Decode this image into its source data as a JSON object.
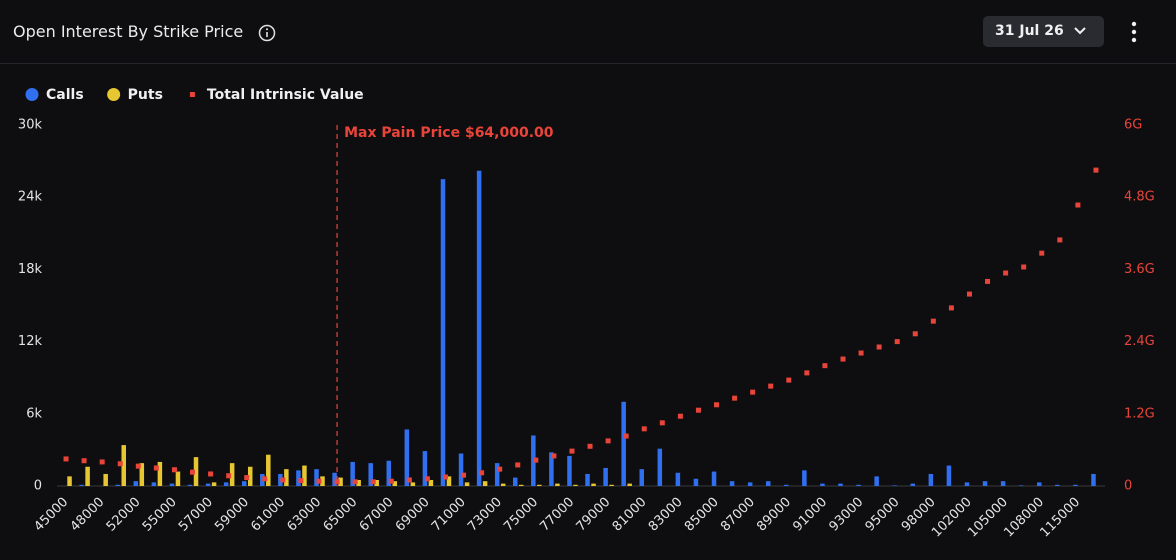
{
  "header": {
    "title": "Open Interest By Strike Price",
    "date": "31 Jul 26"
  },
  "chart_data": {
    "type": "bar",
    "categories": [
      45000,
      null,
      48000,
      null,
      52000,
      null,
      55000,
      null,
      57000,
      null,
      59000,
      null,
      61000,
      null,
      63000,
      null,
      65000,
      null,
      67000,
      null,
      69000,
      null,
      71000,
      null,
      73000,
      null,
      75000,
      null,
      77000,
      null,
      79000,
      null,
      81000,
      null,
      83000,
      null,
      85000,
      null,
      87000,
      null,
      89000,
      null,
      91000,
      null,
      93000,
      null,
      95000,
      null,
      98000,
      null,
      102000,
      null,
      105000,
      null,
      108000,
      null,
      115000,
      null
    ],
    "series": [
      {
        "name": "Calls",
        "color": "#3070f0",
        "values": [
          0,
          100,
          0,
          100,
          400,
          300,
          200,
          100,
          200,
          300,
          400,
          1000,
          1000,
          1300,
          1400,
          1100,
          2000,
          1900,
          2100,
          4700,
          2900,
          25500,
          2700,
          26200,
          1900,
          700,
          4200,
          2800,
          2500,
          1000,
          1500,
          7000,
          1400,
          3100,
          1100,
          600,
          1200,
          400,
          300,
          400,
          100,
          1300,
          200,
          200,
          100,
          800,
          50,
          200,
          1000,
          1700,
          300,
          400,
          400,
          50,
          300,
          100,
          100,
          1000
        ]
      },
      {
        "name": "Puts",
        "color": "#e6c631",
        "values": [
          800,
          1600,
          1000,
          3400,
          1900,
          2000,
          1200,
          2400,
          300,
          1900,
          1600,
          2600,
          1400,
          1700,
          800,
          700,
          500,
          500,
          400,
          300,
          500,
          800,
          300,
          400,
          200,
          100,
          100,
          200,
          100,
          200,
          100,
          200,
          0,
          0,
          0,
          0,
          0,
          0,
          0,
          0,
          0,
          0,
          0,
          0,
          0,
          0,
          0,
          0,
          0,
          0,
          0,
          0,
          0,
          0,
          0,
          0,
          0,
          0
        ]
      },
      {
        "name": "Total Intrinsic Value",
        "color": "#e8443a",
        "axis": "y2",
        "values": [
          0.45,
          0.42,
          0.4,
          0.37,
          0.33,
          0.3,
          0.27,
          0.23,
          0.2,
          0.17,
          0.14,
          0.12,
          0.1,
          0.09,
          0.08,
          0.07,
          0.07,
          0.07,
          0.08,
          0.1,
          0.12,
          0.15,
          0.18,
          0.22,
          0.28,
          0.35,
          0.43,
          0.5,
          0.58,
          0.66,
          0.75,
          0.83,
          0.95,
          1.05,
          1.16,
          1.26,
          1.35,
          1.46,
          1.56,
          1.66,
          1.76,
          1.88,
          2.0,
          2.11,
          2.21,
          2.31,
          2.4,
          2.53,
          2.74,
          2.96,
          3.19,
          3.4,
          3.54,
          3.64,
          3.87,
          4.09,
          4.67,
          5.25
        ]
      }
    ],
    "ylim": [
      0,
      30000
    ],
    "yticks": [
      0,
      {
        "value": 6000,
        "label": "6k"
      },
      {
        "value": 12000,
        "label": "12k"
      },
      {
        "value": 18000,
        "label": "18k"
      },
      {
        "value": 24000,
        "label": "24k"
      },
      {
        "value": 30000,
        "label": "30k"
      }
    ],
    "y2lim": [
      0,
      6
    ],
    "y2ticks": [
      0,
      {
        "value": 1.2,
        "label": "1.2G"
      },
      {
        "value": 2.4,
        "label": "2.4G"
      },
      {
        "value": 3.6,
        "label": "3.6G"
      },
      {
        "value": 4.8,
        "label": "4.8G"
      },
      {
        "value": 6,
        "label": "6G"
      }
    ],
    "annotations": [
      {
        "text": "Max Pain Price $64,000.00",
        "x": 64000,
        "color": "#e8443a"
      }
    ],
    "legend": "top-left",
    "grid": false
  }
}
